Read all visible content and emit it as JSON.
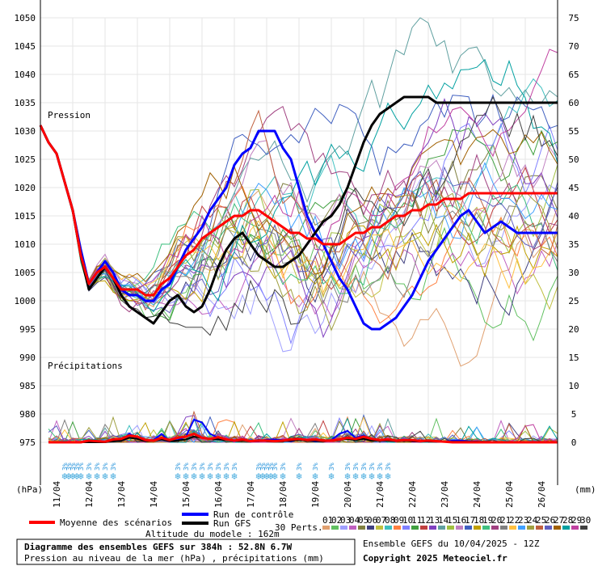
{
  "chart_data": {
    "type": "line",
    "pressure_axis": {
      "unit": "(hPa)",
      "ticks": [
        1050,
        1045,
        1040,
        1035,
        1030,
        1025,
        1020,
        1015,
        1010,
        1005,
        1000,
        995,
        990,
        985,
        980,
        975
      ],
      "range": [
        975,
        1050
      ]
    },
    "precip_axis": {
      "unit": "(mm)",
      "ticks": [
        75,
        70,
        65,
        60,
        55,
        50,
        45,
        40,
        35,
        30,
        25,
        20,
        15,
        10,
        5,
        0
      ],
      "range": [
        0,
        75
      ]
    },
    "x_labels": [
      "11/04",
      "12/04",
      "13/04",
      "14/04",
      "15/04",
      "16/04",
      "17/04",
      "18/04",
      "19/04",
      "20/04",
      "21/04",
      "22/04",
      "23/04",
      "24/04",
      "25/04",
      "26/04"
    ],
    "hours": [
      0,
      6,
      12,
      18,
      24,
      30,
      36,
      42,
      48,
      54,
      60,
      66,
      72,
      78,
      84,
      90,
      96,
      102,
      108,
      114,
      120,
      126,
      132,
      138,
      144,
      150,
      156,
      162,
      168,
      174,
      180,
      186,
      192,
      198,
      204,
      210,
      216,
      222,
      228,
      234,
      240,
      246,
      252,
      258,
      264,
      270,
      276,
      282,
      288,
      294,
      300,
      306,
      312,
      318,
      324,
      330,
      336,
      342,
      348,
      354,
      360,
      366,
      372,
      378,
      384
    ],
    "section_labels": {
      "pressure": "Pression",
      "precip": "Précipitations"
    },
    "series": [
      {
        "name": "Moyenne des scénarios",
        "color": "#ff0000",
        "pressure": [
          1031,
          1028,
          1026,
          1021,
          1016,
          1008,
          1003,
          1005,
          1006,
          1004,
          1002,
          1002,
          1002,
          1001,
          1001,
          1003,
          1004,
          1006,
          1008,
          1009,
          1011,
          1012,
          1013,
          1014,
          1015,
          1015,
          1016,
          1016,
          1015,
          1014,
          1013,
          1012,
          1012,
          1011,
          1011,
          1010,
          1010,
          1010,
          1011,
          1012,
          1012,
          1013,
          1013,
          1014,
          1015,
          1015,
          1016,
          1016,
          1017,
          1017,
          1018,
          1018,
          1018,
          1019,
          1019,
          1019,
          1019,
          1019,
          1019,
          1019,
          1019,
          1019,
          1019,
          1019,
          1019
        ],
        "precip": [
          null,
          0,
          0,
          0,
          0,
          0,
          0.3,
          0.2,
          0.1,
          0.5,
          0.6,
          1.2,
          1.0,
          0.4,
          0.3,
          0.8,
          0.4,
          0.8,
          1.0,
          1.5,
          0.8,
          0.6,
          0.9,
          0.5,
          0.3,
          0.5,
          0.2,
          0.3,
          0.3,
          0.2,
          0.3,
          0.5,
          0.6,
          0.4,
          0.5,
          0.3,
          0.3,
          0.5,
          0.8,
          0.6,
          1.0,
          0.6,
          0.4,
          0.5,
          0.3,
          0.4,
          0.4,
          0.2,
          0.3,
          0.2,
          0.1,
          0,
          0,
          0,
          0,
          0,
          0,
          0,
          0,
          0,
          0,
          0,
          0,
          0,
          0
        ]
      },
      {
        "name": "Run de contrôle",
        "color": "#0000ff",
        "pressure": [
          1031,
          1028,
          1026,
          1021,
          1016,
          1009,
          1003,
          1005,
          1007,
          1005,
          1002,
          1001,
          1001,
          1000,
          1000,
          1002,
          1003,
          1006,
          1009,
          1011,
          1013,
          1016,
          1018,
          1020,
          1024,
          1026,
          1027,
          1030,
          1030,
          1030,
          1027,
          1025,
          1020,
          1015,
          1012,
          1010,
          1007,
          1004,
          1002,
          999,
          996,
          995,
          995,
          996,
          997,
          999,
          1001,
          1004,
          1007,
          1009,
          1011,
          1013,
          1015,
          1016,
          1014,
          1012,
          1013,
          1014,
          1013,
          1012,
          1012,
          1012,
          1012,
          1012,
          1012
        ],
        "precip": [
          null,
          0,
          0,
          0,
          0,
          0,
          0,
          0,
          0,
          0.5,
          0.3,
          1.5,
          0.8,
          0.2,
          0.4,
          1.5,
          0.2,
          0.4,
          1.0,
          4.0,
          3.5,
          1.5,
          0.8,
          0.5,
          0.2,
          0.5,
          0.1,
          0.2,
          0.5,
          0.5,
          0.4,
          0.2,
          0.5,
          0.4,
          0.2,
          0.3,
          0.4,
          1.5,
          2.0,
          0.8,
          1.2,
          0.5,
          0.3,
          0.4,
          0.3,
          0.5,
          0.2,
          0.1,
          0.2,
          0.1,
          0.1,
          0.3,
          0.3,
          0.2,
          0.1,
          0,
          0,
          0,
          0,
          0,
          0,
          0,
          0,
          0,
          0
        ]
      },
      {
        "name": "Run GFS",
        "color": "#000000",
        "pressure": [
          1031,
          1028,
          1026,
          1021,
          1016,
          1008,
          1002,
          1004,
          1006,
          1004,
          1001,
          999,
          998,
          997,
          996,
          998,
          1000,
          1001,
          999,
          998,
          999,
          1002,
          1006,
          1009,
          1011,
          1012,
          1010,
          1008,
          1007,
          1006,
          1006,
          1007,
          1008,
          1010,
          1012,
          1014,
          1015,
          1017,
          1020,
          1024,
          1028,
          1031,
          1033,
          1034,
          1035,
          1036,
          1036,
          1036,
          1036,
          1035,
          1035,
          1035,
          1035,
          1035,
          1035,
          1035,
          1035,
          1035,
          1035,
          1035,
          1035,
          1035,
          1035,
          1035,
          1035
        ],
        "precip": [
          null,
          0,
          0,
          0,
          0,
          0,
          0,
          0,
          0,
          0.2,
          0.3,
          0.8,
          0.6,
          0.2,
          0.3,
          0.5,
          0.2,
          0.3,
          0.5,
          1.0,
          0.8,
          0.6,
          0.5,
          0.4,
          0.3,
          0.3,
          0.2,
          0.2,
          0.3,
          0.2,
          0.2,
          0.3,
          0.4,
          0.3,
          0.3,
          0.2,
          0.3,
          0.5,
          0.6,
          0.4,
          0.6,
          0.3,
          0.3,
          0.3,
          0.2,
          0.3,
          0.2,
          0.1,
          0.2,
          0.1,
          0.1,
          0.1,
          0.1,
          0.1,
          0.1,
          0,
          0,
          0,
          0,
          0,
          0,
          0,
          0,
          0,
          0
        ]
      }
    ],
    "legend": {
      "mean": "Moyenne des scénarios",
      "control": "Run de contrôle",
      "gfs": "Run GFS",
      "perturbations": "30 Perts.",
      "pert_numbers": [
        "01",
        "02",
        "03",
        "04",
        "05",
        "06",
        "07",
        "08",
        "09",
        "10",
        "11",
        "12",
        "13",
        "14",
        "15",
        "16",
        "17",
        "18",
        "19",
        "20",
        "21",
        "22",
        "23",
        "24",
        "25",
        "26",
        "27",
        "28",
        "29",
        "30"
      ],
      "pert_colors": [
        "#e0a070",
        "#60c060",
        "#a0a0ff",
        "#c060c0",
        "#808040",
        "#404080",
        "#c0c040",
        "#40c0c0",
        "#ff8040",
        "#8080ff",
        "#40a040",
        "#c04040",
        "#8040c0",
        "#60a0a0",
        "#a0c040",
        "#c080c0",
        "#4060c0",
        "#c0a000",
        "#40c080",
        "#a04080",
        "#808080",
        "#ffc040",
        "#40a0ff",
        "#a0a040",
        "#c06040",
        "#6060c0",
        "#a06000",
        "#00a0a0",
        "#c040a0",
        "#404040"
      ]
    },
    "altitude": "Altitude du modele : 162m",
    "snow_symbol": "❄",
    "snow_symbol_label": "3%",
    "snow_positions_hours": [
      18,
      21,
      24,
      27,
      30,
      36,
      42,
      48,
      54,
      102,
      108,
      114,
      120,
      126,
      132,
      138,
      144,
      162,
      165,
      168,
      171,
      174,
      180,
      192,
      204,
      216,
      228,
      234,
      240,
      246,
      252,
      258
    ]
  },
  "footer": {
    "title": "Diagramme des ensembles GEFS sur 384h : 52.8N 6.7W",
    "subtitle": "Pression au niveau de la mer (hPa) , précipitations (mm)",
    "run_info": "Ensemble GEFS du 10/04/2025 - 12Z",
    "copyright": "Copyright 2025 Meteociel.fr"
  }
}
